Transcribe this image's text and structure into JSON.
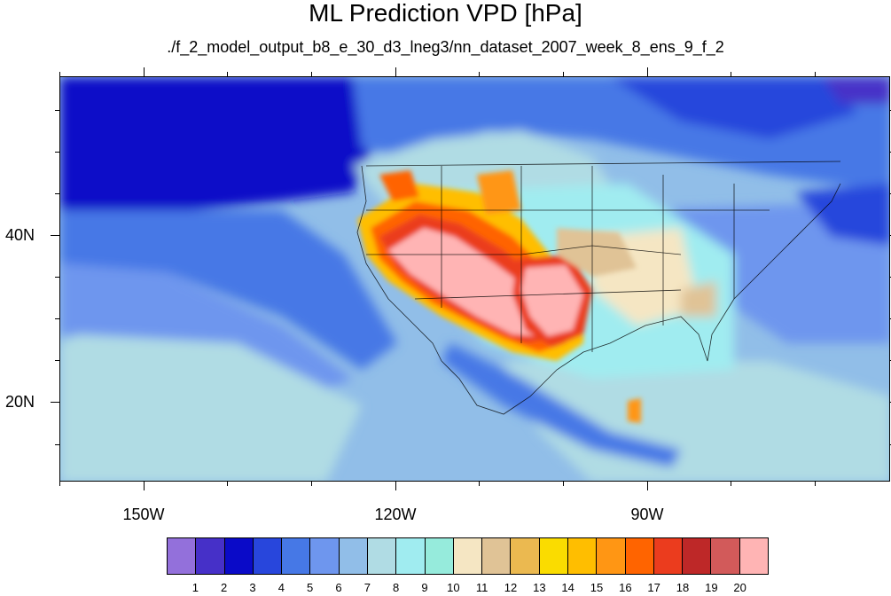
{
  "title": "ML Prediction VPD [hPa]",
  "subtitle": "./f_2_model_output_b8_e_30_d3_lneg3/nn_dataset_2007_week_8_ens_9_f_2",
  "map": {
    "lon_range": [
      -160,
      -61
    ],
    "lat_range": [
      10.5,
      59
    ],
    "lon_ticks": [
      {
        "lon": -150,
        "label": "150W"
      },
      {
        "lon": -120,
        "label": "120W"
      },
      {
        "lon": -90,
        "label": "90W"
      }
    ],
    "lat_ticks": [
      {
        "lat": 40,
        "label": "40N"
      },
      {
        "lat": 20,
        "label": "20N"
      }
    ]
  },
  "colorbar": {
    "colors": [
      "#9370db",
      "#4630c8",
      "#0a0ac8",
      "#2846dc",
      "#4678e6",
      "#6e96ee",
      "#91bee8",
      "#b0dce4",
      "#a0ecf0",
      "#96ebdc",
      "#f5e6c3",
      "#e0c396",
      "#ebb950",
      "#fadc00",
      "#ffbe00",
      "#ff9614",
      "#ff6400",
      "#eb3c1e",
      "#be2828",
      "#d25a5a",
      "#ffb4b4"
    ],
    "labels": [
      "1",
      "2",
      "3",
      "4",
      "5",
      "6",
      "7",
      "8",
      "9",
      "10",
      "11",
      "12",
      "13",
      "14",
      "15",
      "16",
      "17",
      "18",
      "19",
      "20"
    ]
  }
}
